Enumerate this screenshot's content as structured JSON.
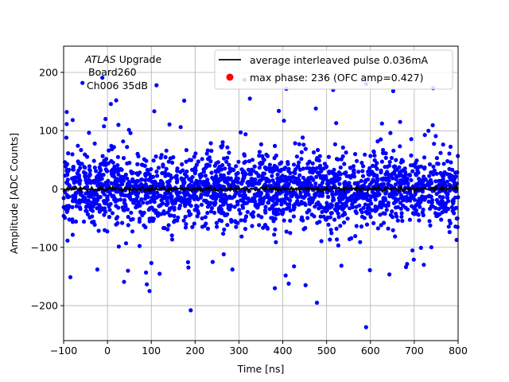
{
  "chart_data": {
    "type": "scatter",
    "title": "",
    "xlabel": "Time [ns]",
    "ylabel": "Amplitude [ADC Counts]",
    "xlim": [
      -100,
      800
    ],
    "ylim": [
      -260,
      245
    ],
    "xticks": [
      -100,
      0,
      100,
      200,
      300,
      400,
      500,
      600,
      700,
      800
    ],
    "yticks": [
      -200,
      -100,
      0,
      100,
      200
    ],
    "xtick_labels": [
      "−100",
      "0",
      "100",
      "200",
      "300",
      "400",
      "500",
      "600",
      "700",
      "800"
    ],
    "ytick_labels": [
      "−200",
      "−100",
      "0",
      "100",
      "200"
    ],
    "grid": true,
    "annotation": {
      "line1_italic": "ATLAS",
      "line1_rest": " Upgrade",
      "line2": "Board260",
      "line3": "Ch006 35dB"
    },
    "legend": {
      "placement": "top-right",
      "entries": [
        {
          "label": "average interleaved pulse 0.036mA",
          "marker": "line",
          "color": "#000000"
        },
        {
          "label": "max phase: 236 (OFC amp=0.427)",
          "marker": "dot",
          "color": "#ff0000"
        }
      ]
    },
    "series": [
      {
        "kind": "scatter",
        "color": "#0000ff",
        "sample_count": 2250,
        "x_range": [
          -100,
          800
        ],
        "y_mean": 0,
        "y_core_spread": 28,
        "outliers": [
          {
            "x": 112,
            "y": 178
          },
          {
            "x": 590,
            "y": 180
          },
          {
            "x": -57,
            "y": 182
          },
          {
            "x": 408,
            "y": 172
          },
          {
            "x": 515,
            "y": 170
          },
          {
            "x": 652,
            "y": 168
          },
          {
            "x": 743,
            "y": 173
          },
          {
            "x": 20,
            "y": 152
          },
          {
            "x": 325,
            "y": 155
          },
          {
            "x": 590,
            "y": -237
          },
          {
            "x": 478,
            "y": -195
          },
          {
            "x": 190,
            "y": -208
          },
          {
            "x": 96,
            "y": -175
          },
          {
            "x": 382,
            "y": -170
          },
          {
            "x": 452,
            "y": -165
          },
          {
            "x": 285,
            "y": -138
          },
          {
            "x": -23,
            "y": -138
          },
          {
            "x": 240,
            "y": -125
          }
        ]
      },
      {
        "kind": "line",
        "name": "average interleaved pulse 0.036mA",
        "color": "#000000",
        "x_range": [
          -100,
          800
        ],
        "y_level": 0,
        "noise": 2
      }
    ]
  }
}
